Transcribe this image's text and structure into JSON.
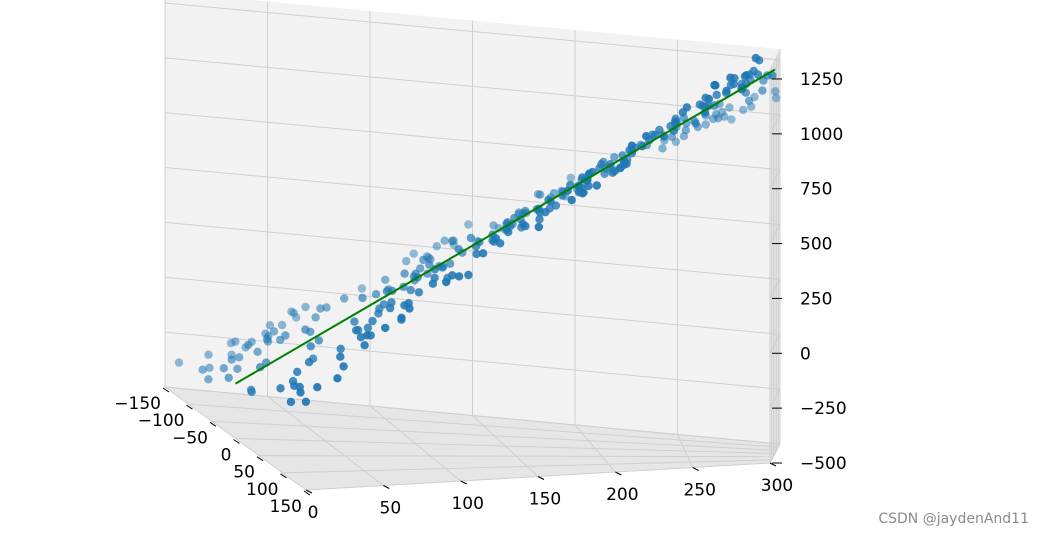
{
  "chart_data": {
    "type": "scatter",
    "projection": "3d",
    "title": "",
    "xlabel": "",
    "ylabel": "",
    "zlabel": "",
    "grid": true,
    "axis_x": {
      "range": [
        0,
        300
      ],
      "ticks": [
        "0",
        "50",
        "100",
        "150",
        "200",
        "250",
        "300"
      ]
    },
    "axis_y": {
      "range": [
        -150,
        150
      ],
      "ticks": [
        "−150",
        "−100",
        "−50",
        "0",
        "50",
        "100",
        "150"
      ]
    },
    "axis_z": {
      "range": [
        -500,
        1300
      ],
      "ticks": [
        "−500",
        "−250",
        "0",
        "250",
        "500",
        "750",
        "1000",
        "1250"
      ]
    },
    "points_color": "#1f77b4",
    "line_color": "#008000",
    "fit_line": {
      "x": [
        0,
        300
      ],
      "z": [
        -250,
        1250
      ]
    },
    "note": "",
    "points": {
      "count": 300,
      "x_range": [
        0,
        300
      ],
      "y_range": [
        -140,
        140
      ],
      "z_approx": "z ≈ 5x − 250 + y"
    }
  },
  "watermark": "CSDN @jaydenAnd11"
}
